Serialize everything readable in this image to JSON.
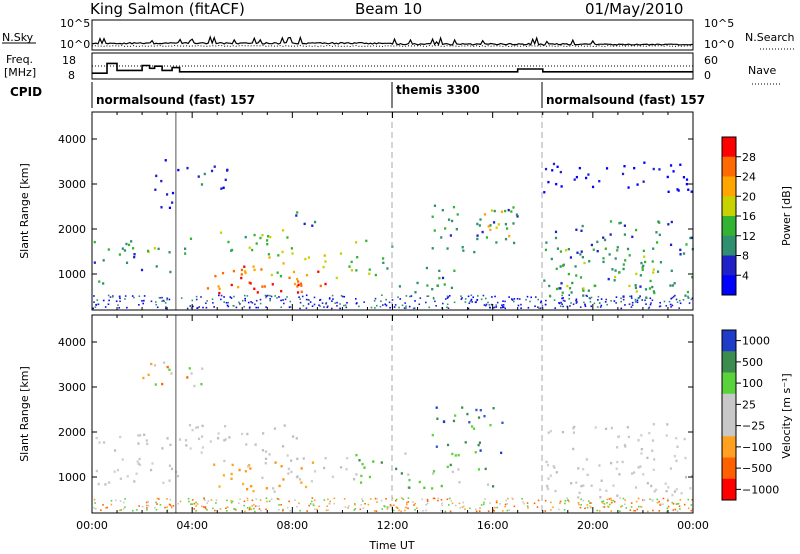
{
  "header": {
    "station": "King Salmon (fitACF)",
    "beam": "Beam 10",
    "date": "01/May/2010"
  },
  "top_panels": {
    "nsky_label": "N.Sky",
    "nsearch_label": "N.Search",
    "nsky_ticks": [
      "10^5",
      "10^0"
    ],
    "nsearch_ticks": [
      "10^5",
      "10^0"
    ],
    "freq_label_top": "Freq.",
    "freq_label_unit": "[MHz]",
    "freq_ticks": [
      "18",
      "8"
    ],
    "nave_label": "Nave",
    "nave_ticks": [
      "60",
      "0"
    ],
    "cpid_label": "CPID"
  },
  "cpid_segments": [
    {
      "text": "normalsound (fast) 157",
      "start_hour": 0
    },
    {
      "text": "themis 3300",
      "start_hour": 12
    },
    {
      "text": "normalsound (fast) 157",
      "start_hour": 18
    }
  ],
  "colors": {
    "axis": "#000000",
    "dashed": "#aaaaaa"
  },
  "chart_data": [
    {
      "type": "heatmap",
      "panel": "power",
      "xlabel": "",
      "ylabel": "Slant Range [km]",
      "xlim": [
        0,
        24
      ],
      "ylim": [
        200,
        4600
      ],
      "yticks": [
        1000,
        2000,
        3000,
        4000
      ],
      "colorbar_label": "Power [dB]",
      "colorbar_ticks": [
        "28",
        "24",
        "20",
        "16",
        "12",
        "8",
        "4"
      ],
      "colorbar_colors": [
        "#ff0000",
        "#ff6a00",
        "#ffa500",
        "#c8d200",
        "#32b432",
        "#2f8f6e",
        "#2020c8",
        "#0000ff"
      ],
      "regions": [
        {
          "x": [
            0.05,
            0.6
          ],
          "y": [
            800,
            1800
          ],
          "level": 3
        },
        {
          "x": [
            0.6,
            2.5
          ],
          "y": [
            1500,
            1900
          ],
          "level": 4
        },
        {
          "x": [
            1.0,
            3.2
          ],
          "y": [
            1000,
            1600
          ],
          "level": 3
        },
        {
          "x": [
            2.4,
            3.2
          ],
          "y": [
            2400,
            3600
          ],
          "level": 2
        },
        {
          "x": [
            3.4,
            5.6
          ],
          "y": [
            2900,
            3500
          ],
          "level": 2
        },
        {
          "x": [
            3.6,
            8.0
          ],
          "y": [
            1400,
            2000
          ],
          "level": 4
        },
        {
          "x": [
            4.5,
            9.5
          ],
          "y": [
            600,
            1200
          ],
          "level": 7
        },
        {
          "x": [
            5.5,
            8.5
          ],
          "y": [
            600,
            1000
          ],
          "level": 8
        },
        {
          "x": [
            7.0,
            10.5
          ],
          "y": [
            900,
            1500
          ],
          "level": 5
        },
        {
          "x": [
            8.0,
            9.0
          ],
          "y": [
            2000,
            2500
          ],
          "level": 3
        },
        {
          "x": [
            10.5,
            12.0
          ],
          "y": [
            1000,
            1800
          ],
          "level": 4
        },
        {
          "x": [
            12.0,
            14.5
          ],
          "y": [
            600,
            1200
          ],
          "level": 3
        },
        {
          "x": [
            13.5,
            17.0
          ],
          "y": [
            1500,
            2600
          ],
          "level": 3
        },
        {
          "x": [
            15.5,
            16.8
          ],
          "y": [
            1600,
            2600
          ],
          "level": 5
        },
        {
          "x": [
            18.0,
            24.0
          ],
          "y": [
            500,
            2200
          ],
          "level": 3
        },
        {
          "x": [
            18.0,
            24.0
          ],
          "y": [
            2800,
            3500
          ],
          "level": 1
        },
        {
          "x": [
            18.5,
            22.5
          ],
          "y": [
            600,
            1600
          ],
          "level": 4
        }
      ]
    },
    {
      "type": "heatmap",
      "panel": "velocity",
      "xlabel": "Time UT",
      "ylabel": "Slant Range [km]",
      "xlim": [
        0,
        24
      ],
      "ylim": [
        200,
        4600
      ],
      "xticks": [
        "00:00",
        "04:00",
        "08:00",
        "12:00",
        "16:00",
        "20:00",
        "00:00"
      ],
      "yticks": [
        1000,
        2000,
        3000,
        4000
      ],
      "colorbar_label": "Velocity [m s⁻¹]",
      "colorbar_ticks": [
        "1000",
        "500",
        "100",
        "25",
        "−25",
        "−100",
        "−500",
        "−1000"
      ],
      "colorbar_colors": [
        "#1e3cc8",
        "#3c8c50",
        "#5ad23c",
        "#c8c8c8",
        "#c8c8c8",
        "#ffa020",
        "#ff6000",
        "#ff0000"
      ],
      "regions": [
        {
          "x": [
            0.05,
            3.4
          ],
          "y": [
            800,
            2000
          ],
          "class": "ground"
        },
        {
          "x": [
            3.4,
            8.5
          ],
          "y": [
            1400,
            2200
          ],
          "class": "ground"
        },
        {
          "x": [
            4.5,
            9.0
          ],
          "y": [
            700,
            1400
          ],
          "class": "negative"
        },
        {
          "x": [
            7.5,
            10.5
          ],
          "y": [
            900,
            1500
          ],
          "class": "ground"
        },
        {
          "x": [
            10.5,
            12.5
          ],
          "y": [
            900,
            1600
          ],
          "class": "positive"
        },
        {
          "x": [
            12.5,
            16.0
          ],
          "y": [
            700,
            1300
          ],
          "class": "positive"
        },
        {
          "x": [
            13.5,
            16.5
          ],
          "y": [
            1500,
            2600
          ],
          "class": "strong-positive"
        },
        {
          "x": [
            18.0,
            24.0
          ],
          "y": [
            500,
            2200
          ],
          "class": "ground"
        },
        {
          "x": [
            2.0,
            4.5
          ],
          "y": [
            2900,
            3600
          ],
          "class": "mixed"
        }
      ]
    }
  ]
}
